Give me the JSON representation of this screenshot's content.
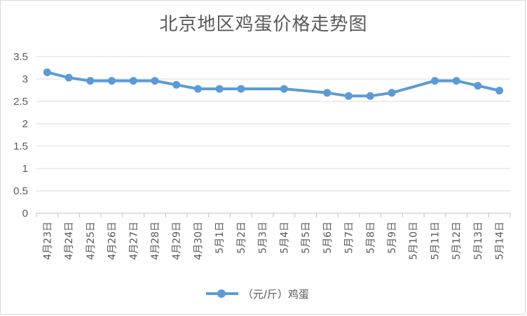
{
  "chart_data": {
    "type": "line",
    "title": "北京地区鸡蛋价格走势图",
    "xlabel": "",
    "ylabel": "",
    "ylim": [
      0,
      3.5
    ],
    "yticks": [
      "0",
      "0.5",
      "1",
      "1.5",
      "2",
      "2.5",
      "3",
      "3.5"
    ],
    "grid": "horizontal",
    "legend_position": "bottom",
    "color": "#5b9bd5",
    "categories": [
      "4月23日",
      "4月24日",
      "4月25日",
      "4月26日",
      "4月27日",
      "4月28日",
      "4月29日",
      "4月30日",
      "5月1日",
      "5月2日",
      "5月3日",
      "5月4日",
      "5月5日",
      "5月6日",
      "5月7日",
      "5月8日",
      "5月9日",
      "5月10日",
      "5月11日",
      "5月12日",
      "5月13日",
      "5月14日"
    ],
    "series": [
      {
        "name": "（元/斤）鸡蛋",
        "values": [
          3.15,
          3.03,
          2.96,
          2.96,
          2.96,
          2.96,
          2.87,
          2.78,
          2.78,
          2.78,
          null,
          2.78,
          null,
          2.69,
          2.62,
          2.62,
          2.69,
          null,
          2.96,
          2.96,
          2.85,
          2.74
        ]
      }
    ]
  }
}
